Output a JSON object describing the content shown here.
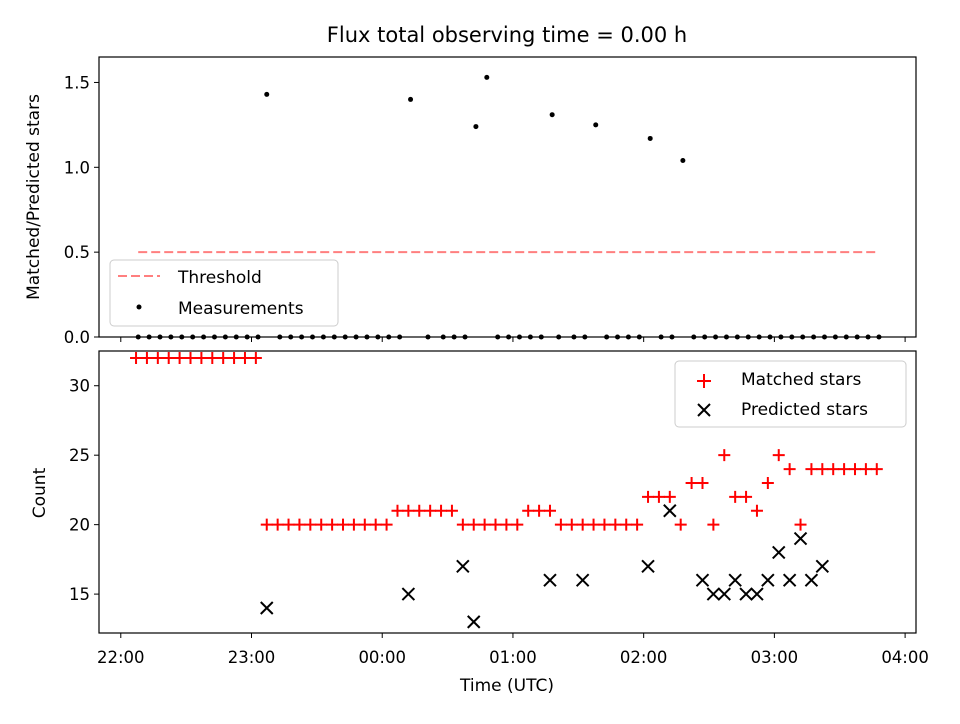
{
  "figure": {
    "title": "Flux total observing time = 0.00 h"
  },
  "chart_data": [
    {
      "type": "scatter",
      "panel": "top",
      "title": "Flux total observing time = 0.00 h",
      "ylabel": "Matched/Predicted stars",
      "xlabel": "",
      "x_unit": "time (UTC)",
      "xlim": [
        "21:50",
        "04:05"
      ],
      "ylim": [
        0,
        1.65
      ],
      "yticks": [
        0.0,
        0.5,
        1.0,
        1.5
      ],
      "ytick_labels": [
        "0.0",
        "0.5",
        "1.0",
        "1.5"
      ],
      "grid": false,
      "legend": {
        "placement": "lower-left",
        "entries": [
          "Threshold",
          "Measurements"
        ]
      },
      "threshold": {
        "name": "Threshold",
        "y": 0.5,
        "x_start": "22:08",
        "x_end": "03:47",
        "color": "#ff7f7f",
        "style": "dashed"
      },
      "series": [
        {
          "name": "Measurements",
          "color": "#000000",
          "marker": "dot",
          "x": [
            "22:08",
            "22:13",
            "22:18",
            "22:23",
            "22:28",
            "22:33",
            "22:38",
            "22:43",
            "22:48",
            "22:53",
            "22:58",
            "23:03",
            "23:07",
            "23:13",
            "23:18",
            "23:23",
            "23:28",
            "23:33",
            "23:38",
            "23:43",
            "23:48",
            "23:53",
            "23:58",
            "00:03",
            "00:08",
            "00:13",
            "00:21",
            "00:28",
            "00:33",
            "00:38",
            "00:43",
            "00:48",
            "00:53",
            "00:58",
            "01:03",
            "01:08",
            "01:13",
            "01:18",
            "01:21",
            "01:28",
            "01:33",
            "01:38",
            "01:43",
            "01:48",
            "01:53",
            "01:58",
            "02:03",
            "02:08",
            "02:13",
            "02:18",
            "02:23",
            "02:28",
            "02:33",
            "02:38",
            "02:43",
            "02:48",
            "02:53",
            "02:58",
            "03:03",
            "03:08",
            "03:13",
            "03:18",
            "03:23",
            "03:28",
            "03:33",
            "03:38",
            "03:43",
            "03:48"
          ],
          "y": [
            0,
            0,
            0,
            0,
            0,
            0,
            0,
            0,
            0,
            0,
            0,
            0,
            1.43,
            0,
            0,
            0,
            0,
            0,
            0,
            0,
            0,
            0,
            0,
            0,
            0,
            1.4,
            0,
            0,
            0,
            0,
            1.24,
            1.53,
            0,
            0,
            0,
            0,
            0,
            1.31,
            0,
            0,
            0,
            1.25,
            0,
            0,
            0,
            0,
            1.17,
            0,
            0,
            1.04,
            0,
            0,
            0,
            0,
            0,
            0,
            0,
            0,
            0,
            0,
            0,
            0,
            0,
            0,
            0,
            0,
            0,
            0
          ]
        }
      ]
    },
    {
      "type": "scatter",
      "panel": "bottom",
      "xlabel": "Time (UTC)",
      "ylabel": "Count",
      "xlim": [
        "21:50",
        "04:05"
      ],
      "ylim": [
        12.2,
        32.5
      ],
      "xticks": [
        "22:00",
        "23:00",
        "00:00",
        "01:00",
        "02:00",
        "03:00",
        "04:00"
      ],
      "yticks": [
        15,
        20,
        25,
        30
      ],
      "ytick_labels": [
        "15",
        "20",
        "25",
        "30"
      ],
      "grid": false,
      "legend": {
        "placement": "upper-right",
        "entries": [
          "Matched stars",
          "Predicted stars"
        ]
      },
      "series": [
        {
          "name": "Matched stars",
          "color": "#ff0000",
          "marker": "plus",
          "x": [
            "22:07",
            "22:12",
            "22:17",
            "22:22",
            "22:27",
            "22:32",
            "22:37",
            "22:42",
            "22:47",
            "22:52",
            "22:57",
            "23:02",
            "23:07",
            "23:12",
            "23:17",
            "23:22",
            "23:27",
            "23:32",
            "23:37",
            "23:42",
            "23:47",
            "23:52",
            "23:57",
            "00:02",
            "00:07",
            "00:12",
            "00:17",
            "00:22",
            "00:27",
            "00:32",
            "00:37",
            "00:42",
            "00:47",
            "00:52",
            "00:57",
            "01:02",
            "01:07",
            "01:12",
            "01:17",
            "01:22",
            "01:27",
            "01:32",
            "01:37",
            "01:42",
            "01:47",
            "01:52",
            "01:57",
            "02:02",
            "02:07",
            "02:12",
            "02:17",
            "02:22",
            "02:27",
            "02:32",
            "02:37",
            "02:42",
            "02:47",
            "02:52",
            "02:57",
            "03:02",
            "03:07",
            "03:12",
            "03:17",
            "03:22",
            "03:27",
            "03:32",
            "03:37",
            "03:42",
            "03:47"
          ],
          "y": [
            32,
            32,
            32,
            32,
            32,
            32,
            32,
            32,
            32,
            32,
            32,
            32,
            20,
            20,
            20,
            20,
            20,
            20,
            20,
            20,
            20,
            20,
            20,
            20,
            21,
            21,
            21,
            21,
            21,
            21,
            20,
            20,
            20,
            20,
            20,
            20,
            21,
            21,
            21,
            20,
            20,
            20,
            20,
            20,
            20,
            20,
            20,
            22,
            22,
            22,
            20,
            23,
            23,
            20,
            25,
            22,
            22,
            21,
            23,
            25,
            24,
            20,
            24,
            24,
            24,
            24,
            24,
            24,
            24
          ]
        },
        {
          "name": "Predicted stars",
          "color": "#000000",
          "marker": "x",
          "x": [
            "23:07",
            "00:12",
            "00:37",
            "00:42",
            "01:17",
            "01:32",
            "02:02",
            "02:12",
            "02:27",
            "02:32",
            "02:37",
            "02:42",
            "02:47",
            "02:52",
            "02:57",
            "03:02",
            "03:07",
            "03:12",
            "03:17",
            "03:22"
          ],
          "y": [
            14,
            15,
            17,
            13,
            16,
            16,
            17,
            21,
            16,
            15,
            15,
            16,
            15,
            15,
            16,
            18,
            16,
            19,
            16,
            17
          ]
        }
      ]
    }
  ]
}
